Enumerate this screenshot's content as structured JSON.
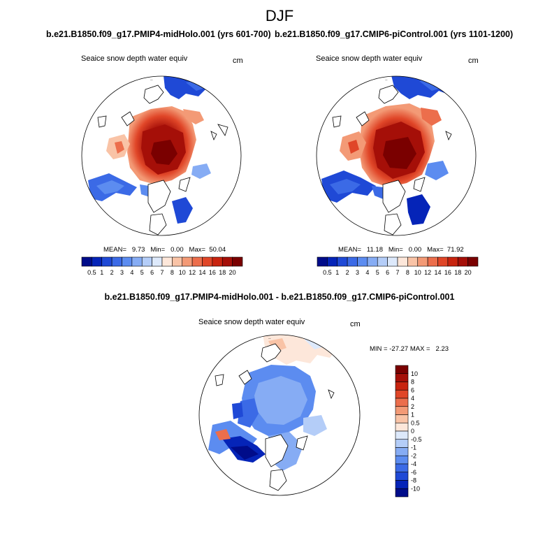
{
  "title": "DJF",
  "panels": [
    {
      "id": "midholo",
      "title": "b.e21.B1850.f09_g17.PMIP4-midHolo.001 (yrs 601-700)",
      "variable": "Seaice snow depth water equiv",
      "units": "cm",
      "stats": {
        "mean_label": "MEAN=",
        "mean": "9.73",
        "min_label": "Min=",
        "min": "0.00",
        "max_label": "Max=",
        "max": "50.04"
      }
    },
    {
      "id": "picontrol",
      "title": "b.e21.B1850.f09_g17.CMIP6-piControl.001 (yrs 1101-1200)",
      "variable": "Seaice snow depth water equiv",
      "units": "cm",
      "stats": {
        "mean_label": "MEAN=",
        "mean": "11.18",
        "min_label": "Min=",
        "min": "0.00",
        "max_label": "Max=",
        "max": "71.92"
      }
    }
  ],
  "colorbar": {
    "labels": [
      "0.5",
      "1",
      "2",
      "3",
      "4",
      "5",
      "6",
      "7",
      "8",
      "10",
      "12",
      "14",
      "16",
      "18",
      "20"
    ],
    "colors": [
      "#000c8a",
      "#0524b8",
      "#1f49d6",
      "#3b6ae6",
      "#5c8cf0",
      "#86acf4",
      "#b4cdf8",
      "#dde9fb",
      "#fde7da",
      "#f9c3a6",
      "#f39a76",
      "#ec6e4c",
      "#e04628",
      "#c8240f",
      "#a50f08",
      "#7a0000"
    ]
  },
  "difference": {
    "title": "b.e21.B1850.f09_g17.PMIP4-midHolo.001 - b.e21.B1850.f09_g17.CMIP6-piControl.001",
    "variable": "Seaice snow depth water equiv",
    "units": "cm",
    "stats": {
      "min_label": "MIN =",
      "min": "-27.27",
      "max_label": "MAX =",
      "max": "2.23"
    },
    "colorbar": {
      "labels": [
        "10",
        "8",
        "6",
        "4",
        "2",
        "1",
        "0.5",
        "0",
        "-0.5",
        "-1",
        "-2",
        "-4",
        "-6",
        "-8",
        "-10"
      ],
      "colors": [
        "#7a0000",
        "#a50f08",
        "#c8240f",
        "#e04628",
        "#ec6e4c",
        "#f39a76",
        "#f9c3a6",
        "#fde7da",
        "#dde9fb",
        "#b4cdf8",
        "#86acf4",
        "#5c8cf0",
        "#3b6ae6",
        "#1f49d6",
        "#0524b8",
        "#000c8a"
      ]
    }
  }
}
